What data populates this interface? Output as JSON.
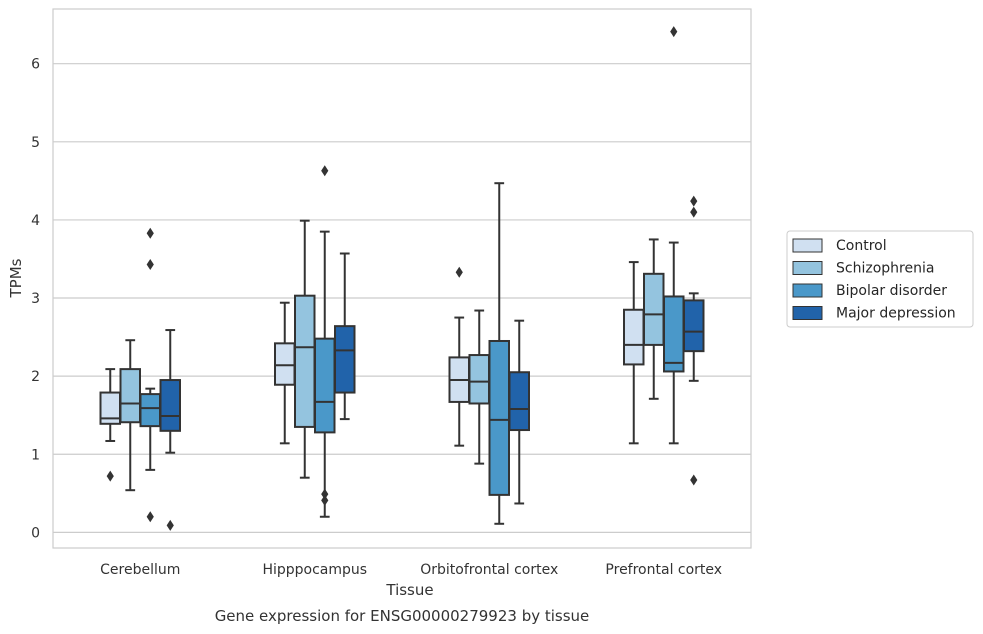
{
  "chart_data": {
    "type": "box",
    "xlabel": "Tissue",
    "ylabel": "TPMs",
    "caption": "Gene expression for ENSG00000279923 by tissue",
    "ylim": [
      -0.2,
      6.7
    ],
    "yticks": [
      0,
      1,
      2,
      3,
      4,
      5,
      6
    ],
    "grid": "horizontal",
    "legend_position": "right",
    "categories": [
      "Cerebellum",
      "Hipppocampus",
      "Orbitofrontal cortex",
      "Prefrontal cortex"
    ],
    "series": [
      {
        "name": "Control",
        "color": "#d0e0f1",
        "boxes": [
          {
            "whislo": 1.17,
            "q1": 1.39,
            "med": 1.46,
            "q3": 1.79,
            "whishi": 2.09,
            "fliers": [
              0.72
            ]
          },
          {
            "whislo": 1.14,
            "q1": 1.89,
            "med": 2.14,
            "q3": 2.42,
            "whishi": 2.94,
            "fliers": []
          },
          {
            "whislo": 1.11,
            "q1": 1.67,
            "med": 1.95,
            "q3": 2.24,
            "whishi": 2.75,
            "fliers": [
              3.33
            ]
          },
          {
            "whislo": 1.14,
            "q1": 2.15,
            "med": 2.4,
            "q3": 2.85,
            "whishi": 3.46,
            "fliers": []
          }
        ]
      },
      {
        "name": "Schizophrenia",
        "color": "#94c4df",
        "boxes": [
          {
            "whislo": 0.54,
            "q1": 1.41,
            "med": 1.65,
            "q3": 2.09,
            "whishi": 2.46,
            "fliers": []
          },
          {
            "whislo": 0.7,
            "q1": 1.35,
            "med": 2.37,
            "q3": 3.03,
            "whishi": 3.99,
            "fliers": []
          },
          {
            "whislo": 0.88,
            "q1": 1.65,
            "med": 1.93,
            "q3": 2.27,
            "whishi": 2.84,
            "fliers": []
          },
          {
            "whislo": 1.71,
            "q1": 2.4,
            "med": 2.79,
            "q3": 3.31,
            "whishi": 3.75,
            "fliers": []
          }
        ]
      },
      {
        "name": "Bipolar disorder",
        "color": "#4a98c9",
        "boxes": [
          {
            "whislo": 0.8,
            "q1": 1.36,
            "med": 1.59,
            "q3": 1.77,
            "whishi": 1.84,
            "fliers": [
              3.83,
              3.43,
              0.2
            ]
          },
          {
            "whislo": 0.2,
            "q1": 1.28,
            "med": 1.67,
            "q3": 2.48,
            "whishi": 3.85,
            "fliers": [
              4.63,
              0.49,
              0.41
            ]
          },
          {
            "whislo": 0.11,
            "q1": 0.48,
            "med": 1.44,
            "q3": 2.45,
            "whishi": 4.47,
            "fliers": []
          },
          {
            "whislo": 1.14,
            "q1": 2.06,
            "med": 2.17,
            "q3": 3.02,
            "whishi": 3.71,
            "fliers": [
              6.41
            ]
          }
        ]
      },
      {
        "name": "Major depression",
        "color": "#2163aa",
        "boxes": [
          {
            "whislo": 1.02,
            "q1": 1.3,
            "med": 1.49,
            "q3": 1.95,
            "whishi": 2.59,
            "fliers": [
              0.09
            ]
          },
          {
            "whislo": 1.45,
            "q1": 1.79,
            "med": 2.33,
            "q3": 2.64,
            "whishi": 3.57,
            "fliers": []
          },
          {
            "whislo": 0.37,
            "q1": 1.31,
            "med": 1.58,
            "q3": 2.05,
            "whishi": 2.71,
            "fliers": []
          },
          {
            "whislo": 1.94,
            "q1": 2.32,
            "med": 2.57,
            "q3": 2.97,
            "whishi": 3.06,
            "fliers": [
              4.24,
              4.1,
              0.67
            ]
          }
        ]
      }
    ],
    "style": {
      "background": "#ffffff",
      "grid_color": "#cccccc",
      "line_color": "#333333",
      "frame_color": "#cccccc"
    }
  }
}
